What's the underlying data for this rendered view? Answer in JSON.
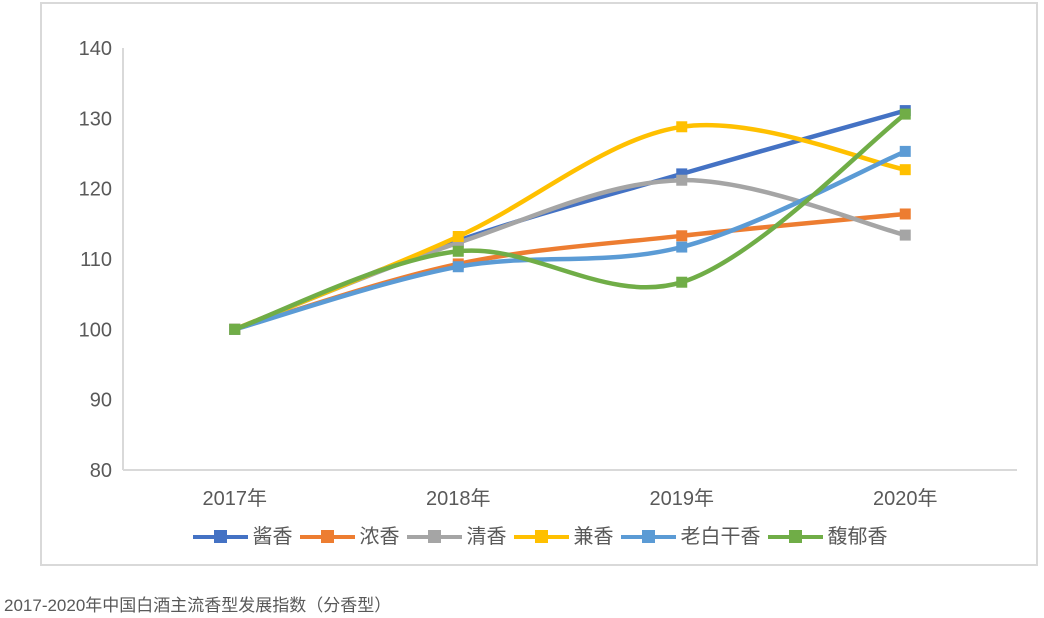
{
  "caption": "2017-2020年中国白酒主流香型发展指数（分香型）",
  "colors": {
    "axis_line": "#D9D9D9",
    "frame_border": "#D9D9D9",
    "tick_text": "#595959",
    "caption_text": "#595959"
  },
  "chart_data": {
    "type": "line",
    "smooth": true,
    "marker": "square",
    "grid": false,
    "legend_position": "bottom",
    "title": "2017-2020年中国白酒主流香型发展指数（分香型）",
    "xlabel": "",
    "ylabel": "",
    "categories": [
      "2017年",
      "2018年",
      "2019年",
      "2020年"
    ],
    "yticks": [
      80,
      90,
      100,
      110,
      120,
      130,
      140
    ],
    "ylim": [
      80,
      140
    ],
    "series": [
      {
        "name": "酱香",
        "color": "#4472C4",
        "values": [
          100,
          112.6,
          122.1,
          131.1
        ]
      },
      {
        "name": "浓香",
        "color": "#ED7D31",
        "values": [
          100,
          109.3,
          113.3,
          116.4
        ]
      },
      {
        "name": "清香",
        "color": "#A5A5A5",
        "values": [
          100,
          112.3,
          121.2,
          113.4
        ]
      },
      {
        "name": "兼香",
        "color": "#FFC000",
        "values": [
          100,
          113.2,
          128.8,
          122.7
        ]
      },
      {
        "name": "老白干香",
        "color": "#5B9BD5",
        "values": [
          100,
          108.9,
          111.7,
          125.3
        ]
      },
      {
        "name": "馥郁香",
        "color": "#70AD47",
        "values": [
          100,
          111.1,
          106.7,
          130.6
        ]
      }
    ]
  }
}
